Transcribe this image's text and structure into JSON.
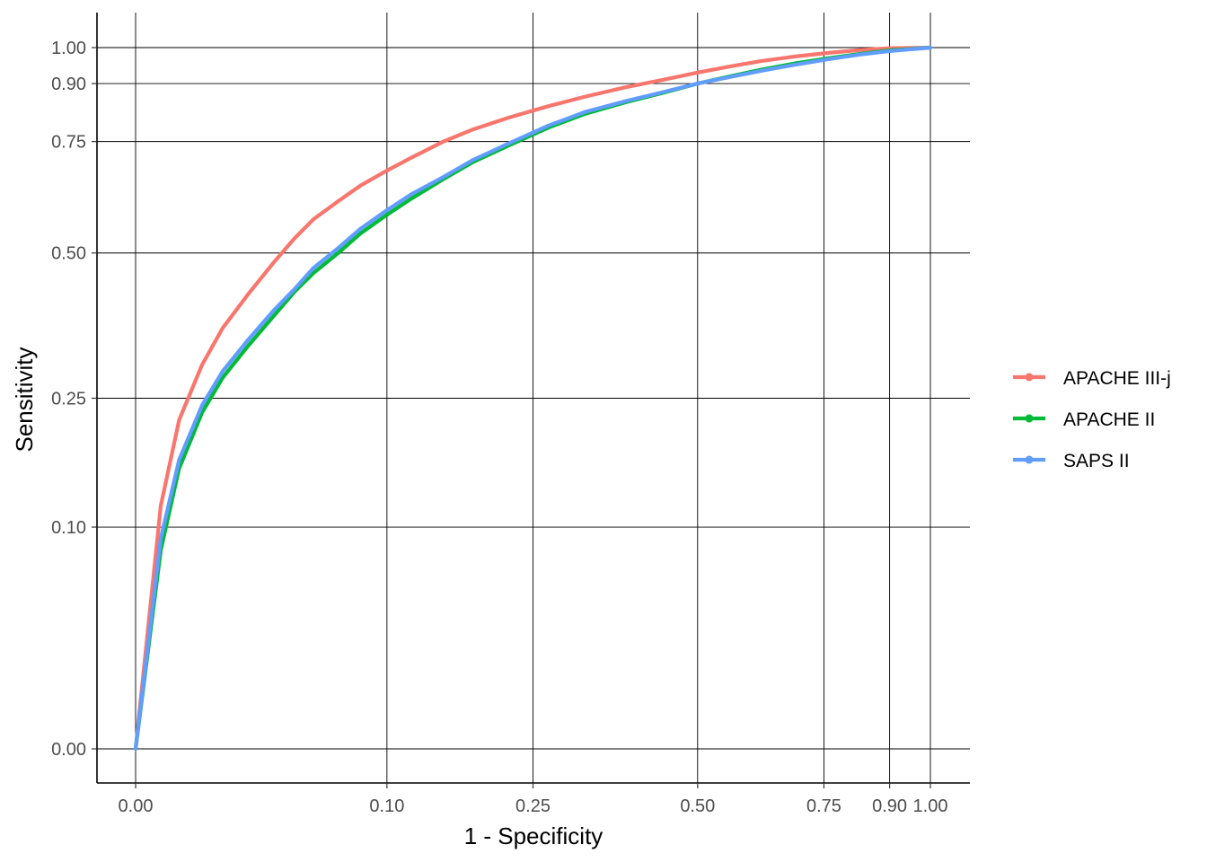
{
  "chart_data": {
    "type": "line",
    "xlabel": "1 - Specificity",
    "ylabel": "Sensitivity",
    "xlim": [
      0,
      1
    ],
    "ylim": [
      0,
      1
    ],
    "x_scale": "sqrt",
    "y_scale": "sqrt",
    "x_ticks": [
      0.0,
      0.1,
      0.25,
      0.5,
      0.75,
      0.9,
      1.0
    ],
    "x_tick_labels": [
      "0.00",
      "0.10",
      "0.25",
      "0.50",
      "0.75",
      "0.90",
      "1.00"
    ],
    "y_ticks": [
      0.0,
      0.1,
      0.25,
      0.5,
      0.75,
      0.9,
      1.0
    ],
    "y_tick_labels": [
      "0.00",
      "0.10",
      "0.25",
      "0.50",
      "0.75",
      "0.90",
      "1.00"
    ],
    "grid": true,
    "legend_position": "right",
    "series": [
      {
        "name": "APACHE III-j",
        "color": "#F8766D",
        "x": [
          0,
          0.001,
          0.003,
          0.007,
          0.012,
          0.02,
          0.03,
          0.04,
          0.05,
          0.065,
          0.08,
          0.1,
          0.12,
          0.15,
          0.18,
          0.22,
          0.27,
          0.32,
          0.38,
          0.44,
          0.5,
          0.56,
          0.62,
          0.69,
          0.76,
          0.83,
          0.9,
          0.95,
          1.0
        ],
        "y": [
          0,
          0.12,
          0.22,
          0.3,
          0.36,
          0.42,
          0.48,
          0.53,
          0.57,
          0.61,
          0.645,
          0.68,
          0.71,
          0.75,
          0.78,
          0.81,
          0.84,
          0.865,
          0.89,
          0.91,
          0.93,
          0.947,
          0.962,
          0.975,
          0.985,
          0.993,
          0.998,
          0.999,
          1.0
        ]
      },
      {
        "name": "APACHE II",
        "color": "#00BA38",
        "x": [
          0,
          0.001,
          0.003,
          0.007,
          0.012,
          0.02,
          0.03,
          0.04,
          0.05,
          0.065,
          0.08,
          0.1,
          0.12,
          0.15,
          0.18,
          0.22,
          0.27,
          0.32,
          0.38,
          0.44,
          0.5,
          0.56,
          0.62,
          0.69,
          0.76,
          0.83,
          0.9,
          0.95,
          1.0
        ],
        "y": [
          0,
          0.08,
          0.16,
          0.23,
          0.28,
          0.33,
          0.38,
          0.425,
          0.46,
          0.5,
          0.54,
          0.58,
          0.615,
          0.66,
          0.7,
          0.74,
          0.785,
          0.82,
          0.85,
          0.875,
          0.9,
          0.92,
          0.938,
          0.956,
          0.97,
          0.982,
          0.992,
          0.996,
          1.0
        ]
      },
      {
        "name": "SAPS II",
        "color": "#619CFF",
        "x": [
          0,
          0.001,
          0.003,
          0.007,
          0.012,
          0.02,
          0.03,
          0.04,
          0.05,
          0.065,
          0.08,
          0.1,
          0.12,
          0.15,
          0.18,
          0.22,
          0.27,
          0.32,
          0.38,
          0.44,
          0.5,
          0.56,
          0.62,
          0.69,
          0.76,
          0.83,
          0.9,
          0.95,
          1.0
        ],
        "y": [
          0,
          0.09,
          0.17,
          0.24,
          0.29,
          0.34,
          0.39,
          0.43,
          0.47,
          0.51,
          0.55,
          0.59,
          0.625,
          0.665,
          0.705,
          0.745,
          0.79,
          0.825,
          0.853,
          0.877,
          0.9,
          0.918,
          0.935,
          0.952,
          0.967,
          0.98,
          0.99,
          0.995,
          1.0
        ]
      }
    ]
  }
}
